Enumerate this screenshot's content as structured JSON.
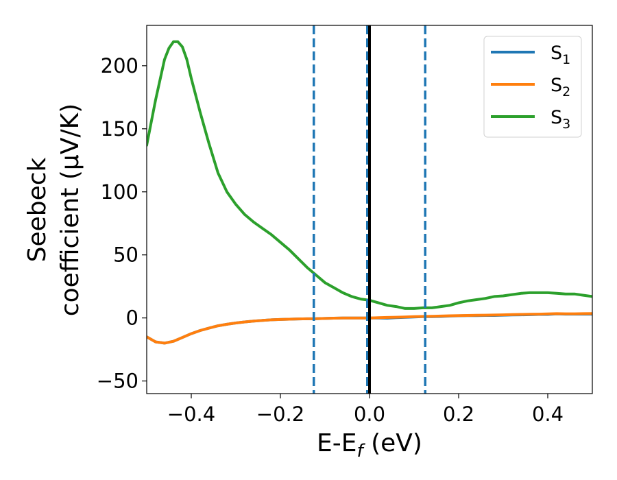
{
  "chart_data": {
    "type": "line",
    "xlabel": "E-E",
    "xlabel_sub": "f",
    "xlabel_unit": " (eV)",
    "ylabel_line1": "Seebeck",
    "ylabel_line2": "coefficient  (μV/K)",
    "xlim": [
      -0.5,
      0.5
    ],
    "ylim": [
      -60,
      232
    ],
    "xticks": [
      -0.4,
      -0.2,
      0.0,
      0.2,
      0.4
    ],
    "xtick_labels": [
      "−0.4",
      "−0.2",
      "0.0",
      "0.2",
      "0.4"
    ],
    "yticks": [
      -50,
      0,
      50,
      100,
      150,
      200
    ],
    "ytick_labels": [
      "−50",
      "0",
      "50",
      "100",
      "150",
      "200"
    ],
    "grid": false,
    "legend_position": "top-right",
    "series": [
      {
        "name": "S",
        "sub": "1",
        "color": "#1f77b4",
        "x": [
          -0.5,
          -0.48,
          -0.46,
          -0.44,
          -0.42,
          -0.4,
          -0.38,
          -0.36,
          -0.34,
          -0.32,
          -0.3,
          -0.28,
          -0.26,
          -0.24,
          -0.22,
          -0.2,
          -0.18,
          -0.16,
          -0.14,
          -0.12,
          -0.1,
          -0.08,
          -0.06,
          -0.04,
          -0.02,
          0.0,
          0.02,
          0.04,
          0.06,
          0.08,
          0.1,
          0.12,
          0.14,
          0.16,
          0.18,
          0.2,
          0.22,
          0.24,
          0.26,
          0.28,
          0.3,
          0.32,
          0.34,
          0.36,
          0.38,
          0.4,
          0.42,
          0.44,
          0.46,
          0.48,
          0.5
        ],
        "y": [
          -15,
          -19,
          -20,
          -18.5,
          -15.5,
          -12.5,
          -10,
          -8,
          -6.2,
          -5,
          -4,
          -3.2,
          -2.5,
          -2,
          -1.5,
          -1.2,
          -1,
          -0.8,
          -0.7,
          -0.6,
          -0.4,
          -0.2,
          0,
          0,
          0,
          0,
          0,
          -0.2,
          0.2,
          0.5,
          0.8,
          1,
          1,
          1.2,
          1.5,
          1.7,
          1.8,
          1.8,
          2,
          2,
          2.2,
          2.4,
          2.5,
          2.6,
          2.8,
          2.8,
          3.2,
          3,
          3,
          3,
          3
        ]
      },
      {
        "name": "S",
        "sub": "2",
        "color": "#ff7f0e",
        "x": [
          -0.5,
          -0.48,
          -0.46,
          -0.44,
          -0.42,
          -0.4,
          -0.38,
          -0.36,
          -0.34,
          -0.32,
          -0.3,
          -0.28,
          -0.26,
          -0.24,
          -0.22,
          -0.2,
          -0.18,
          -0.16,
          -0.14,
          -0.12,
          -0.1,
          -0.08,
          -0.06,
          -0.04,
          -0.02,
          0.0,
          0.02,
          0.04,
          0.06,
          0.08,
          0.1,
          0.12,
          0.14,
          0.16,
          0.18,
          0.2,
          0.22,
          0.24,
          0.26,
          0.28,
          0.3,
          0.32,
          0.34,
          0.36,
          0.38,
          0.4,
          0.42,
          0.44,
          0.46,
          0.48,
          0.5
        ],
        "y": [
          -15,
          -19,
          -20,
          -18.5,
          -15.5,
          -12.5,
          -10,
          -8,
          -6.2,
          -5,
          -4,
          -3.2,
          -2.5,
          -2,
          -1.5,
          -1.2,
          -1,
          -0.8,
          -0.7,
          -0.6,
          -0.4,
          -0.2,
          0,
          0,
          0,
          0,
          0.2,
          0.4,
          0.6,
          0.8,
          1,
          1.2,
          1.3,
          1.5,
          1.7,
          1.9,
          2,
          2.1,
          2.2,
          2.3,
          2.5,
          2.7,
          2.8,
          2.9,
          3,
          3.2,
          3.4,
          3.3,
          3.3,
          3.4,
          3.5
        ]
      },
      {
        "name": "S",
        "sub": "3",
        "color": "#2ca02c",
        "x": [
          -0.5,
          -0.48,
          -0.46,
          -0.45,
          -0.44,
          -0.43,
          -0.42,
          -0.41,
          -0.4,
          -0.38,
          -0.36,
          -0.34,
          -0.32,
          -0.3,
          -0.28,
          -0.26,
          -0.24,
          -0.22,
          -0.2,
          -0.18,
          -0.16,
          -0.14,
          -0.12,
          -0.1,
          -0.08,
          -0.06,
          -0.04,
          -0.02,
          0.0,
          0.02,
          0.04,
          0.06,
          0.08,
          0.1,
          0.12,
          0.14,
          0.16,
          0.18,
          0.2,
          0.22,
          0.24,
          0.26,
          0.28,
          0.3,
          0.32,
          0.34,
          0.36,
          0.38,
          0.4,
          0.42,
          0.44,
          0.46,
          0.48,
          0.5
        ],
        "y": [
          137,
          173,
          205,
          214,
          219,
          219,
          215,
          205,
          190,
          163,
          138,
          115,
          100,
          90,
          82,
          76,
          71,
          66,
          60,
          54,
          47,
          40,
          34,
          28,
          24,
          20,
          17,
          15,
          14,
          12,
          10,
          9,
          7.5,
          7.5,
          8,
          8,
          9,
          10,
          12,
          13.5,
          14.5,
          15.5,
          17,
          17.5,
          18.5,
          19.5,
          20,
          20,
          20,
          19.5,
          19,
          19,
          18,
          17
        ]
      }
    ],
    "vlines": [
      {
        "x": -0.125,
        "style": "dashed",
        "color": "#1f77b4"
      },
      {
        "x": -0.005,
        "style": "dashed",
        "color": "#1f77b4"
      },
      {
        "x": 0.125,
        "style": "dashed",
        "color": "#1f77b4"
      },
      {
        "x": 0.0,
        "style": "solid",
        "color": "#000000"
      }
    ]
  }
}
